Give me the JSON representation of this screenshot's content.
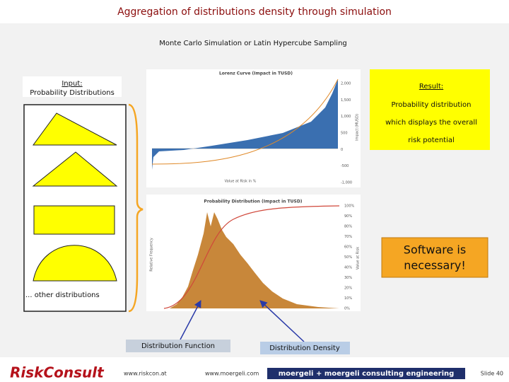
{
  "header": {
    "title": "Aggregation of distributions density through simulation",
    "subtitle": "Monte Carlo Simulation or Latin Hypercube Sampling"
  },
  "input_box": {
    "title": "Input:",
    "text": "Probability Distributions"
  },
  "distributions_note": "... other distributions",
  "result": {
    "title": "Result:",
    "lines": [
      "Probability distribution",
      "which displays the overall",
      "risk potential"
    ]
  },
  "software_note": {
    "lines": [
      "Software is",
      "necessary!"
    ]
  },
  "charts": {
    "lorenz": {
      "title": "Lorenz Curve (Impact in TUSD)",
      "x_label": "Value at Risk in %",
      "y_label": "Impact (MUSD)",
      "ticks": [
        "2,000",
        "1,500",
        "1,000",
        "500",
        "0",
        "-500",
        "-1,000"
      ]
    },
    "distribution": {
      "title": "Probability Distribution (Impact in TUSD)",
      "y_label": "Relative Frequency",
      "y2_label": "Value at Risk",
      "ticks": [
        "100%",
        "90%",
        "80%",
        "70%",
        "60%",
        "50%",
        "40%",
        "30%",
        "20%",
        "10%",
        "0%"
      ]
    }
  },
  "labels": {
    "function": "Distribution Function",
    "density": "Distribution Density"
  },
  "footer": {
    "logo": "RiskConsult",
    "link1": "www.riskcon.at",
    "link2": "www.moergeli.com",
    "banner": "moergeli + moergeli consulting engineering",
    "slide": "Slide 40"
  }
}
